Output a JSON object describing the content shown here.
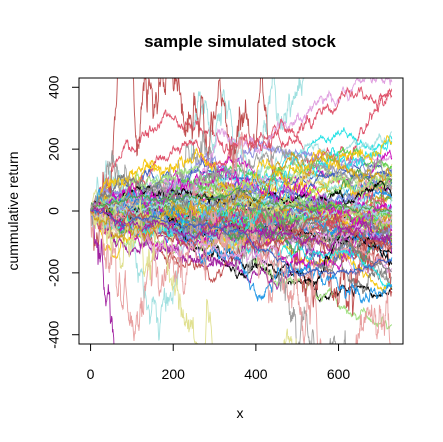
{
  "chart_data": {
    "type": "line",
    "title": "sample simulated stock",
    "xlabel": "x",
    "ylabel": "cummulative return",
    "xlim": [
      -28,
      756
    ],
    "ylim": [
      -430,
      430
    ],
    "xticks": [
      0,
      200,
      400,
      600
    ],
    "yticks": [
      -400,
      -200,
      0,
      200,
      400
    ],
    "grid": false,
    "legend": "none",
    "num_series": 100,
    "num_points": 730,
    "series_spread": "fan of random-walk paths starting at 0, spreading roughly ±400 by x=730",
    "palette": [
      "#000000",
      "#DF536B",
      "#61D04F",
      "#2297E6",
      "#28E2E5",
      "#CD0BBC",
      "#F5C710",
      "#9E9E9E",
      "#E8A0A0",
      "#A0E080",
      "#9090E0",
      "#A0E0E0",
      "#E0A0E0",
      "#E0E090",
      "#808080",
      "#C05050",
      "#50A050",
      "#4060C0",
      "#A020A0",
      "#D0A020"
    ]
  }
}
